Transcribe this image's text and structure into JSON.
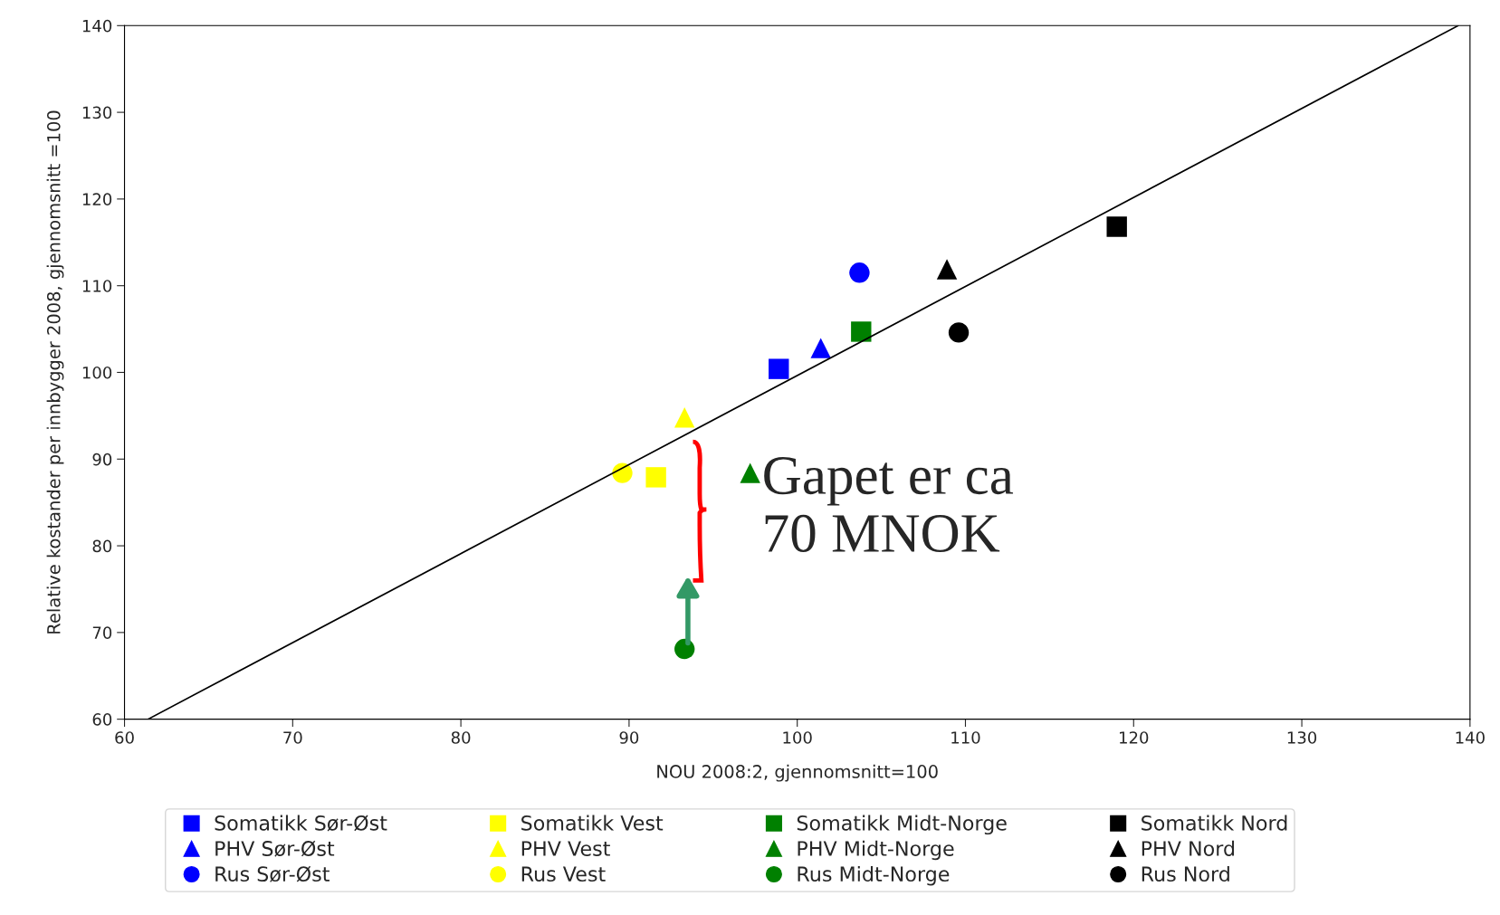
{
  "chart_data": {
    "type": "scatter",
    "xlabel": "NOU 2008:2, gjennomsnitt=100",
    "ylabel": "Relative kostander per innbygger 2008, gjennomsnitt =100",
    "xlim": [
      60,
      140
    ],
    "xticks": [
      60,
      70,
      80,
      90,
      100,
      110,
      120,
      130,
      140
    ],
    "ylim": [
      60,
      140
    ],
    "yticks": [
      60,
      70,
      80,
      90,
      100,
      110,
      120,
      130,
      140
    ],
    "grid": false,
    "legend": "bottom",
    "annotations": [
      {
        "text": "Gapet er ca 70 MNOK",
        "x": 93.3,
        "y": 68.1
      }
    ],
    "series": [
      {
        "name": "Somatikk Sør-Øst",
        "color": "#0000ff",
        "marker": "square",
        "x": [
          98.9
        ],
        "values": [
          100.4
        ]
      },
      {
        "name": "PHV Sør-Øst",
        "color": "#0000ff",
        "marker": "triangle",
        "x": [
          101.4
        ],
        "values": [
          102.8
        ]
      },
      {
        "name": "Rus Sør-Øst",
        "color": "#0000ff",
        "marker": "circle",
        "x": [
          103.7
        ],
        "values": [
          111.5
        ]
      },
      {
        "name": "Somatikk Vest",
        "color": "#ffff00",
        "marker": "square",
        "x": [
          91.6
        ],
        "values": [
          87.9
        ]
      },
      {
        "name": "PHV Vest",
        "color": "#ffff00",
        "marker": "triangle",
        "x": [
          93.3
        ],
        "values": [
          94.8
        ]
      },
      {
        "name": "Rus Vest",
        "color": "#ffff00",
        "marker": "circle",
        "x": [
          89.6
        ],
        "values": [
          88.4
        ]
      },
      {
        "name": "Somatikk Midt-Norge",
        "color": "#008000",
        "marker": "square",
        "x": [
          103.8
        ],
        "values": [
          104.7
        ]
      },
      {
        "name": "PHV Midt-Norge",
        "color": "#008000",
        "marker": "triangle",
        "x": [
          97.2
        ],
        "values": [
          88.4
        ]
      },
      {
        "name": "Rus Midt-Norge",
        "color": "#008000",
        "marker": "circle",
        "x": [
          93.3
        ],
        "values": [
          68.1
        ]
      },
      {
        "name": "Somatikk Nord",
        "color": "#000000",
        "marker": "square",
        "x": [
          119.0
        ],
        "values": [
          116.8
        ]
      },
      {
        "name": "PHV Nord",
        "color": "#000000",
        "marker": "triangle",
        "x": [
          108.9
        ],
        "values": [
          111.9
        ]
      },
      {
        "name": "Rus Nord",
        "color": "#000000",
        "marker": "circle",
        "x": [
          109.6
        ],
        "values": [
          104.6
        ]
      },
      {
        "type": "line",
        "color": "#000000",
        "marker": "none",
        "x": [
          61.4,
          139.3
        ],
        "values": [
          60,
          140
        ]
      }
    ]
  }
}
